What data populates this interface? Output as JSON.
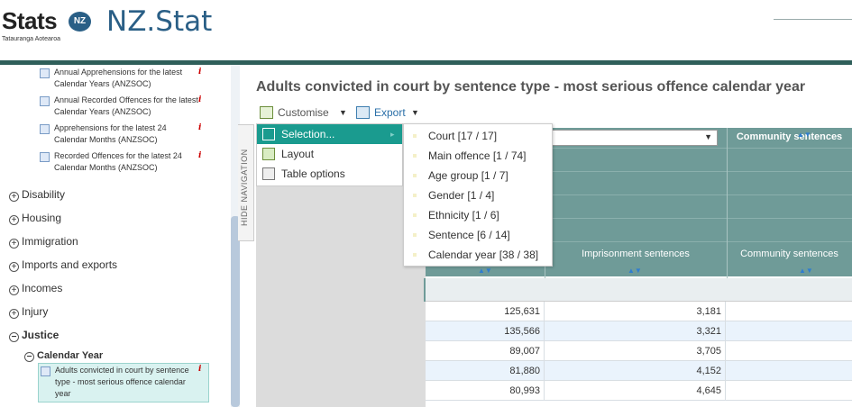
{
  "header": {
    "logo_text": "Stats",
    "logo_badge": "NZ",
    "logo_subtitle": "Tatauranga Aotearoa",
    "site_title": "NZ.Stat",
    "colors": {
      "brand_blue": "#2a5f86",
      "header_bar": "#2f5f5a",
      "grid_header": "#6f9b98"
    }
  },
  "sidebar": {
    "datasets_top": [
      {
        "label": "Annual Apprehensions for the latest Calendar Years (ANZSOC)",
        "info": "i"
      },
      {
        "label": "Annual Recorded Offences for the latest Calendar Years (ANZSOC)",
        "info": "i"
      },
      {
        "label": "Apprehensions for the latest 24 Calendar Months (ANZSOC)",
        "info": "i"
      },
      {
        "label": "Recorded Offences for the latest 24 Calendar Months (ANZSOC)",
        "info": "i"
      }
    ],
    "themes": [
      {
        "symbol": "+",
        "label": "Disability"
      },
      {
        "symbol": "+",
        "label": "Housing"
      },
      {
        "symbol": "+",
        "label": "Immigration"
      },
      {
        "symbol": "+",
        "label": "Imports and exports"
      },
      {
        "symbol": "+",
        "label": "Incomes"
      },
      {
        "symbol": "+",
        "label": "Injury"
      },
      {
        "symbol": "−",
        "label": "Justice"
      }
    ],
    "subtheme": {
      "symbol": "−",
      "label": "Calendar Year"
    },
    "selected_dataset": {
      "label": "Adults convicted in court by sentence type - most serious offence calendar year",
      "info": "i"
    },
    "hide_nav_label": "HIDE NAVIGATION"
  },
  "main": {
    "page_title": "Adults convicted in court by sentence type - most serious offence calendar year",
    "toolbar": {
      "customise_label": "Customise",
      "export_label": "Export"
    },
    "customise_menu": [
      "Selection...",
      "Layout",
      "Table options"
    ],
    "export_menu": [
      "Court [17 / 17]",
      "Main offence [1 / 74]",
      "Age group [1 / 7]",
      "Gender [1 / 4]",
      "Ethnicity [1 / 6]",
      "Sentence [6 / 14]",
      "Calendar year [38 / 38]"
    ],
    "grid": {
      "top_header_right": "Community sentences",
      "column_headers": [
        "Imprisonment sentences",
        "Community sentences"
      ],
      "rows": [
        [
          "125,631",
          "3,181"
        ],
        [
          "135,566",
          "3,321"
        ],
        [
          "89,007",
          "3,705"
        ],
        [
          "81,880",
          "4,152"
        ],
        [
          "80,993",
          "4,645"
        ]
      ]
    }
  }
}
